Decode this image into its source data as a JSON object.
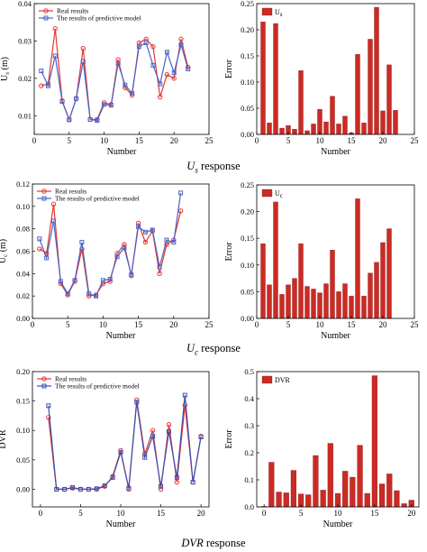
{
  "figure": {
    "captions": [
      {
        "symbol": "U",
        "sub": "s",
        "text": " response"
      },
      {
        "symbol": "U",
        "sub": "c",
        "text": " response"
      },
      {
        "symbol": "DVR",
        "sub": "",
        "text": " response"
      }
    ]
  },
  "chart_data": [
    {
      "type": "line",
      "xlabel": "Number",
      "ylabel": "U_s (m)",
      "xlim": [
        0,
        25
      ],
      "xticks": [
        0,
        5,
        10,
        15,
        20,
        25
      ],
      "ylim": [
        0.005,
        0.04
      ],
      "yticks": [
        0.01,
        0.02,
        0.03,
        0.04
      ],
      "ytick_labels": [
        "0.01",
        "0.02",
        "0.03",
        "0.04"
      ],
      "grid": false,
      "legend": "top-left",
      "x": [
        1,
        2,
        3,
        4,
        5,
        6,
        7,
        8,
        9,
        10,
        11,
        12,
        13,
        14,
        15,
        16,
        17,
        18,
        19,
        20,
        21,
        22
      ],
      "series": [
        {
          "name": "Real results",
          "color": "#e8352e",
          "marker": "circle",
          "values": [
            0.018,
            0.0185,
            0.0333,
            0.014,
            0.009,
            0.0145,
            0.028,
            0.009,
            0.009,
            0.0135,
            0.013,
            0.025,
            0.0175,
            0.0155,
            0.0295,
            0.0305,
            0.0285,
            0.015,
            0.021,
            0.02,
            0.0305,
            0.023
          ]
        },
        {
          "name": "The results of predictive model",
          "color": "#4a63c8",
          "marker": "square",
          "values": [
            0.022,
            0.018,
            0.026,
            0.0138,
            0.0089,
            0.0146,
            0.0245,
            0.009,
            0.0087,
            0.013,
            0.0128,
            0.024,
            0.0182,
            0.016,
            0.0285,
            0.0295,
            0.0235,
            0.0185,
            0.027,
            0.0215,
            0.029,
            0.0225
          ]
        }
      ]
    },
    {
      "type": "bar",
      "xlabel": "Number",
      "ylabel": "Error",
      "xlim": [
        0,
        25
      ],
      "xticks": [
        0,
        5,
        10,
        15,
        20,
        25
      ],
      "ylim": [
        0,
        0.25
      ],
      "yticks": [
        0,
        0.05,
        0.1,
        0.15,
        0.2,
        0.25
      ],
      "ytick_labels": [
        "0.00",
        "0.05",
        "0.10",
        "0.15",
        "0.20",
        "0.25"
      ],
      "legend": "top-left",
      "color": "#cc2a24",
      "series": [
        {
          "name": "U_s",
          "x": [
            1,
            2,
            3,
            4,
            5,
            6,
            7,
            8,
            9,
            10,
            11,
            12,
            13,
            14,
            15,
            16,
            17,
            18,
            19,
            20,
            21,
            22
          ],
          "values": [
            0.215,
            0.022,
            0.212,
            0.012,
            0.017,
            0.01,
            0.122,
            0.007,
            0.02,
            0.048,
            0.024,
            0.073,
            0.02,
            0.035,
            0.003,
            0.153,
            0.022,
            0.182,
            0.243,
            0.045,
            0.133,
            0.046
          ]
        }
      ]
    },
    {
      "type": "line",
      "xlabel": "Number",
      "ylabel": "U_c (m)",
      "xlim": [
        0,
        25
      ],
      "xticks": [
        0,
        5,
        10,
        15,
        20,
        25
      ],
      "ylim": [
        0,
        0.12
      ],
      "yticks": [
        0,
        0.02,
        0.04,
        0.06,
        0.08,
        0.1,
        0.12
      ],
      "ytick_labels": [
        "0.00",
        "0.02",
        "0.04",
        "0.06",
        "0.08",
        "0.10",
        "0.12"
      ],
      "grid": false,
      "legend": "top-left",
      "x": [
        1,
        2,
        3,
        4,
        5,
        6,
        7,
        8,
        9,
        10,
        11,
        12,
        13,
        14,
        15,
        16,
        17,
        18,
        19,
        20,
        21
      ],
      "series": [
        {
          "name": "Real results",
          "color": "#e8352e",
          "marker": "circle",
          "values": [
            0.062,
            0.058,
            0.102,
            0.031,
            0.021,
            0.033,
            0.062,
            0.02,
            0.021,
            0.031,
            0.033,
            0.058,
            0.066,
            0.038,
            0.085,
            0.068,
            0.078,
            0.04,
            0.066,
            0.07,
            0.096
          ]
        },
        {
          "name": "The results of predictive model",
          "color": "#4a63c8",
          "marker": "square",
          "values": [
            0.071,
            0.054,
            0.087,
            0.033,
            0.022,
            0.034,
            0.068,
            0.022,
            0.02,
            0.034,
            0.035,
            0.055,
            0.063,
            0.039,
            0.082,
            0.077,
            0.079,
            0.046,
            0.07,
            0.068,
            0.112
          ]
        }
      ]
    },
    {
      "type": "bar",
      "xlabel": "Number",
      "ylabel": "Error",
      "xlim": [
        0,
        25
      ],
      "xticks": [
        0,
        5,
        10,
        15,
        20,
        25
      ],
      "ylim": [
        0,
        0.25
      ],
      "yticks": [
        0,
        0.05,
        0.1,
        0.15,
        0.2,
        0.25
      ],
      "ytick_labels": [
        "0.00",
        "0.05",
        "0.10",
        "0.15",
        "0.20",
        "0.25"
      ],
      "legend": "top-left",
      "color": "#cc2a24",
      "series": [
        {
          "name": "U_c",
          "x": [
            1,
            2,
            3,
            4,
            5,
            6,
            7,
            8,
            9,
            10,
            11,
            12,
            13,
            14,
            15,
            16,
            17,
            18,
            19,
            20,
            21
          ],
          "values": [
            0.14,
            0.063,
            0.218,
            0.045,
            0.063,
            0.075,
            0.14,
            0.06,
            0.055,
            0.048,
            0.065,
            0.128,
            0.05,
            0.065,
            0.042,
            0.224,
            0.042,
            0.085,
            0.105,
            0.142,
            0.168
          ]
        }
      ]
    },
    {
      "type": "line",
      "xlabel": "Number",
      "ylabel": "DVR",
      "xlim": [
        -1,
        21
      ],
      "xticks": [
        0,
        5,
        10,
        15,
        20
      ],
      "ylim": [
        -0.03,
        0.2
      ],
      "yticks": [
        0,
        0.05,
        0.1,
        0.15,
        0.2
      ],
      "ytick_labels": [
        "0.00",
        "0.05",
        "0.10",
        "0.15",
        "0.20"
      ],
      "grid": false,
      "legend": "top-left",
      "x": [
        1,
        2,
        3,
        4,
        5,
        6,
        7,
        8,
        9,
        10,
        11,
        12,
        13,
        14,
        15,
        16,
        17,
        18,
        19,
        20
      ],
      "series": [
        {
          "name": "Real results",
          "color": "#e8352e",
          "marker": "circle",
          "values": [
            0.122,
            0.0,
            0.0,
            0.002,
            0.0,
            0.0,
            0.0,
            0.005,
            0.022,
            0.066,
            0.0,
            0.152,
            0.06,
            0.1,
            0.0,
            0.11,
            0.012,
            0.143,
            0.012,
            0.09
          ]
        },
        {
          "name": "The results of predictive model",
          "color": "#3b4fb3",
          "marker": "square",
          "values": [
            0.142,
            0.0,
            0.0,
            0.003,
            0.0,
            0.0,
            0.001,
            0.006,
            0.02,
            0.063,
            0.002,
            0.148,
            0.054,
            0.09,
            0.005,
            0.098,
            0.02,
            0.16,
            0.012,
            0.089
          ]
        }
      ]
    },
    {
      "type": "bar",
      "xlabel": "Number",
      "ylabel": "Error",
      "xlim": [
        -1,
        21
      ],
      "xticks": [
        0,
        5,
        10,
        15,
        20
      ],
      "ylim": [
        0,
        0.5
      ],
      "yticks": [
        0,
        0.1,
        0.2,
        0.3,
        0.4,
        0.5
      ],
      "ytick_labels": [
        "0.0",
        "0.1",
        "0.2",
        "0.3",
        "0.4",
        "0.5"
      ],
      "legend": "top-left",
      "color": "#cc2a24",
      "series": [
        {
          "name": "DVR",
          "x": [
            0,
            1,
            2,
            3,
            4,
            5,
            6,
            7,
            8,
            9,
            10,
            11,
            12,
            13,
            14,
            15,
            16,
            17,
            18,
            19,
            20
          ],
          "values": [
            0.002,
            0.165,
            0.055,
            0.052,
            0.135,
            0.048,
            0.045,
            0.19,
            0.062,
            0.235,
            0.05,
            0.132,
            0.11,
            0.228,
            0.05,
            0.485,
            0.085,
            0.122,
            0.06,
            0.012,
            0.025
          ]
        }
      ]
    }
  ]
}
